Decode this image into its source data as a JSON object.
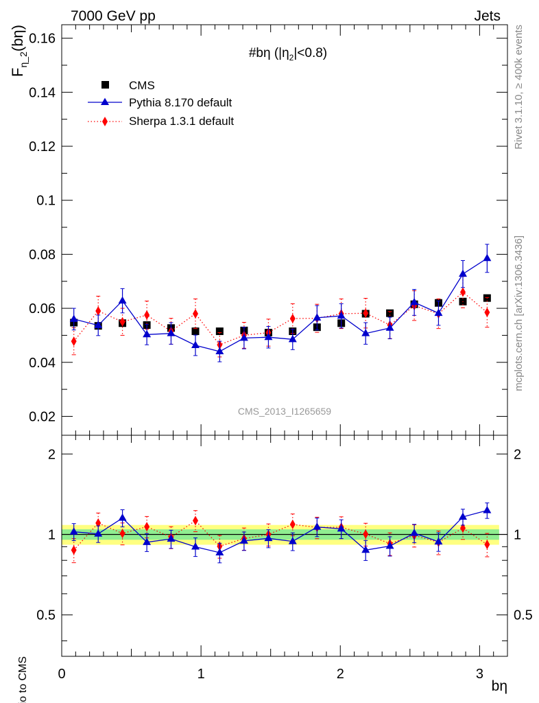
{
  "header": {
    "left": "7000 GeV pp",
    "right": "Jets"
  },
  "side_labels": {
    "rivet": "Rivet 3.1.10, ≥ 400k events",
    "mcplots": "mcplots.cern.ch [arXiv:1306.3436]"
  },
  "watermark": "CMS_2013_I1265659",
  "chart_data": [
    {
      "type": "scatter",
      "title": "#bη (|η",
      "title_sub": "2",
      "title_end": "|<0.8)",
      "ylabel": "F",
      "ylabel_sub": "η_2",
      "ylabel_end": "(bη)",
      "xlim": [
        0,
        3.2
      ],
      "ylim": [
        0.013,
        0.165
      ],
      "yticks": [
        0.02,
        0.04,
        0.06,
        0.08,
        0.1,
        0.12,
        0.14,
        0.16
      ],
      "ytick_labels": [
        "0.02",
        "0.04",
        "0.06",
        "0.08",
        "0.1",
        "0.12",
        "0.14",
        "0.16"
      ],
      "legend_position": "top-left",
      "x": [
        0.087,
        0.262,
        0.436,
        0.611,
        0.785,
        0.96,
        1.134,
        1.309,
        1.484,
        1.658,
        1.833,
        2.007,
        2.182,
        2.356,
        2.531,
        2.705,
        2.88,
        3.054
      ],
      "series": [
        {
          "name": "CMS",
          "color": "#000000",
          "marker": "square",
          "line": "none",
          "values": [
            0.0547,
            0.0535,
            0.0545,
            0.0538,
            0.0527,
            0.0515,
            0.0515,
            0.0518,
            0.051,
            0.0515,
            0.053,
            0.0545,
            0.058,
            0.0582,
            0.0615,
            0.062,
            0.0625,
            0.0638
          ],
          "errors": [
            0.001,
            0.0008,
            0.0008,
            0.0008,
            0.0008,
            0.0008,
            0.0008,
            0.0008,
            0.0008,
            0.0008,
            0.0008,
            0.0008,
            0.0008,
            0.0008,
            0.0008,
            0.0008,
            0.0008,
            0.0008
          ]
        },
        {
          "name": "Pythia 8.170 default",
          "color": "#0000cc",
          "marker": "triangle",
          "line": "solid",
          "values": [
            0.056,
            0.0537,
            0.0628,
            0.0503,
            0.0507,
            0.0463,
            0.044,
            0.049,
            0.0493,
            0.0485,
            0.0565,
            0.0572,
            0.0507,
            0.0527,
            0.0622,
            0.0582,
            0.0727,
            0.0785
          ],
          "errors": [
            0.004,
            0.0038,
            0.0045,
            0.0038,
            0.004,
            0.0038,
            0.0038,
            0.004,
            0.004,
            0.0038,
            0.0045,
            0.0045,
            0.004,
            0.004,
            0.0048,
            0.0045,
            0.005,
            0.0052
          ]
        },
        {
          "name": "Sherpa 1.3.1 default",
          "color": "#ff0000",
          "marker": "diamond",
          "line": "dotted",
          "values": [
            0.0478,
            0.059,
            0.055,
            0.0575,
            0.0515,
            0.058,
            0.0465,
            0.05,
            0.051,
            0.0562,
            0.0563,
            0.058,
            0.0582,
            0.0538,
            0.061,
            0.058,
            0.066,
            0.0585
          ],
          "errors": [
            0.005,
            0.0055,
            0.005,
            0.0052,
            0.0048,
            0.0055,
            0.0045,
            0.0048,
            0.005,
            0.0055,
            0.0052,
            0.0055,
            0.0055,
            0.005,
            0.0055,
            0.0055,
            0.0058,
            0.0055
          ]
        }
      ]
    },
    {
      "type": "scatter",
      "ylabel": "Ratio to CMS",
      "xlabel": "bη",
      "xlim": [
        0,
        3.2
      ],
      "ylim": [
        0.35,
        2.35
      ],
      "yscale": "log",
      "yticks": [
        0.5,
        1,
        2
      ],
      "ytick_labels": [
        "0.5",
        "1",
        "2"
      ],
      "xticks": [
        0,
        1,
        2,
        3
      ],
      "xtick_labels": [
        "0",
        "1",
        "2",
        "3"
      ],
      "reference_line": 1,
      "bands": {
        "inner_color": "#90ee90",
        "outer_color": "#ffff80",
        "inner_halfwidth": 0.045,
        "outer_halfwidth": 0.085
      },
      "series": [
        {
          "name": "Pythia 8.170 default",
          "color": "#0000cc",
          "marker": "triangle",
          "line": "solid",
          "values": [
            1.023,
            1.005,
            1.152,
            0.935,
            0.962,
            0.899,
            0.855,
            0.946,
            0.967,
            0.942,
            1.066,
            1.05,
            0.874,
            0.905,
            1.011,
            0.939,
            1.163,
            1.23
          ],
          "errors": [
            0.075,
            0.072,
            0.085,
            0.072,
            0.075,
            0.072,
            0.072,
            0.075,
            0.075,
            0.072,
            0.085,
            0.085,
            0.075,
            0.075,
            0.08,
            0.075,
            0.08,
            0.082
          ]
        },
        {
          "name": "Sherpa 1.3.1 default",
          "color": "#ff0000",
          "marker": "diamond",
          "line": "dotted",
          "values": [
            0.874,
            1.103,
            1.009,
            1.069,
            0.977,
            1.126,
            0.903,
            0.965,
            1.0,
            1.091,
            1.062,
            1.064,
            1.003,
            0.924,
            0.992,
            0.935,
            1.056,
            0.917
          ],
          "errors": [
            0.09,
            0.1,
            0.095,
            0.098,
            0.092,
            0.102,
            0.088,
            0.092,
            0.095,
            0.102,
            0.098,
            0.1,
            0.098,
            0.09,
            0.095,
            0.095,
            0.098,
            0.092
          ]
        }
      ]
    }
  ]
}
